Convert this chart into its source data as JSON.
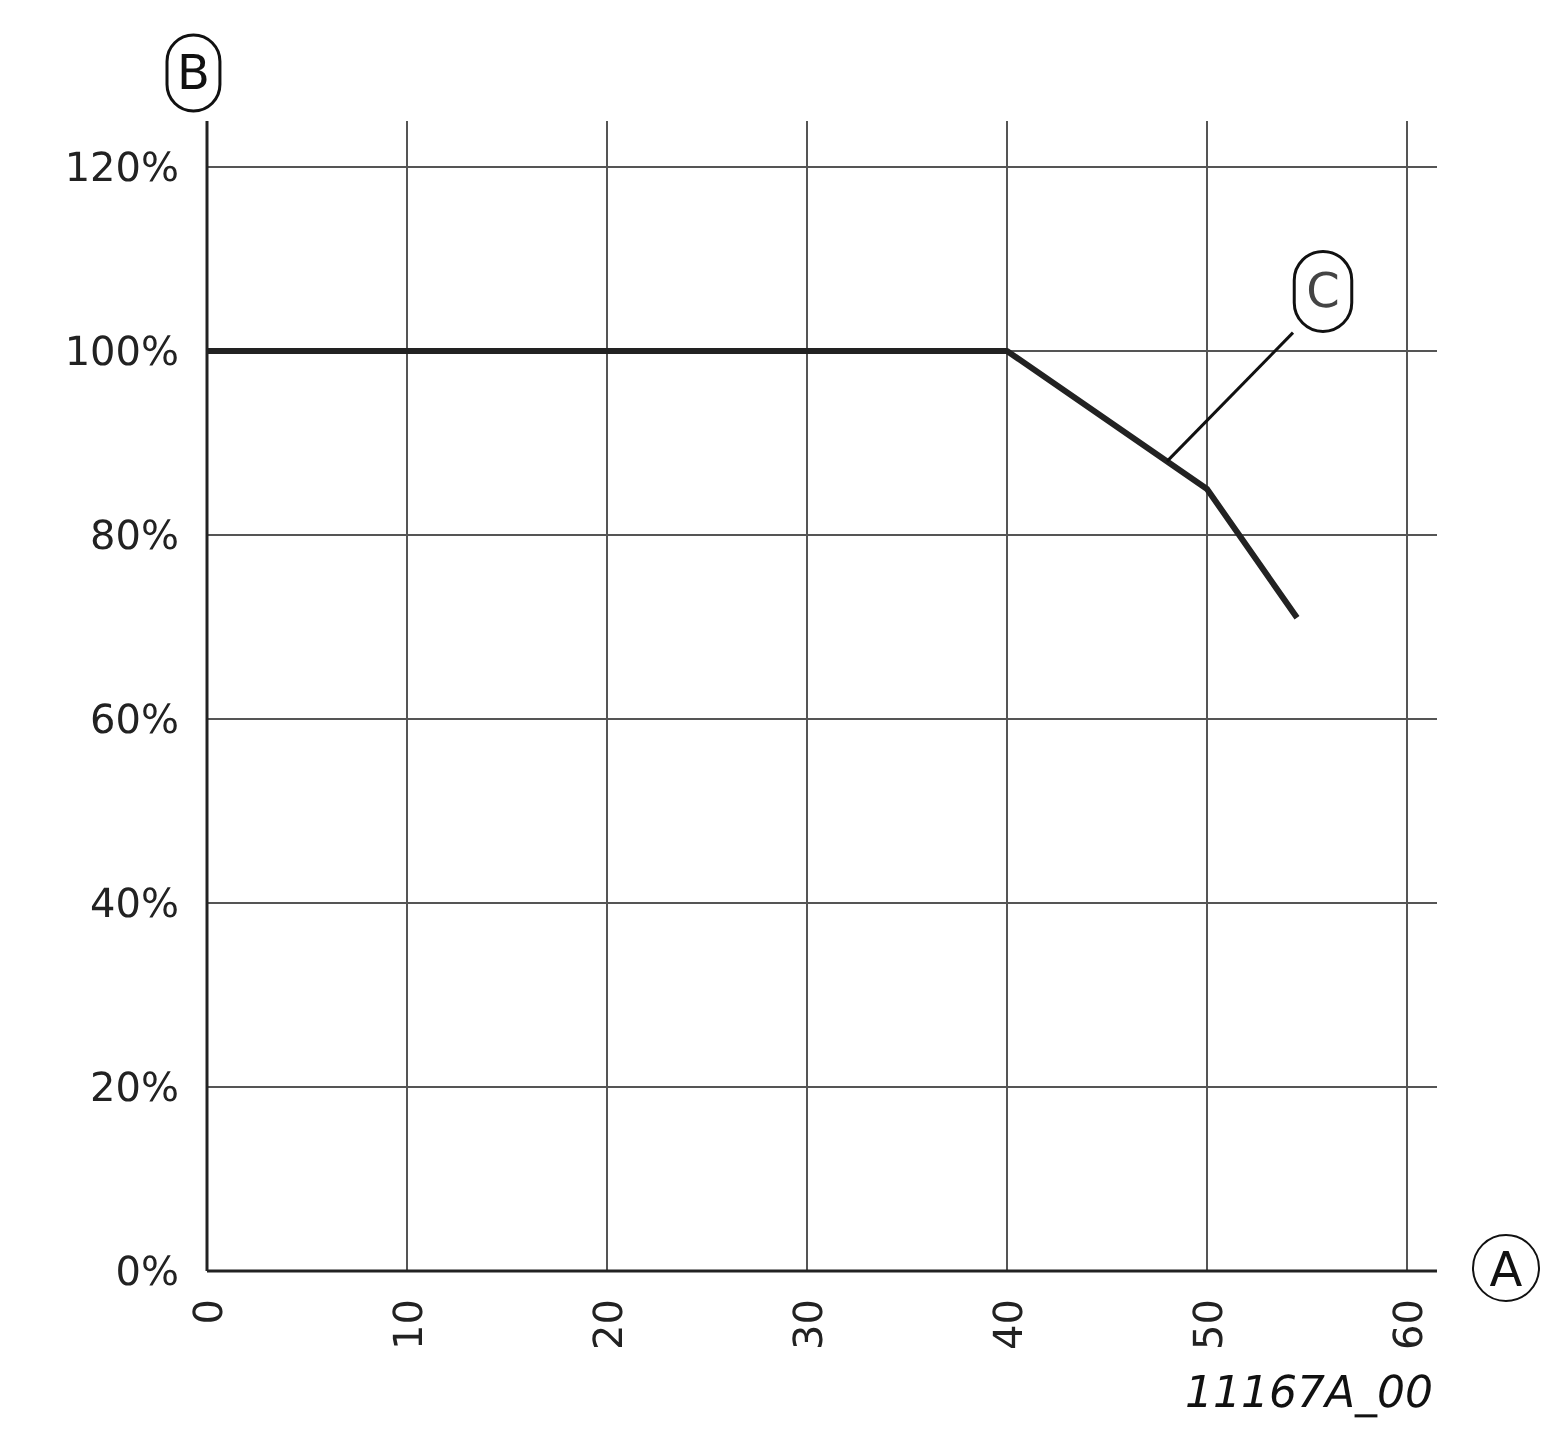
{
  "chart_data": {
    "type": "line",
    "xlabel": "A",
    "ylabel": "B",
    "x": [
      0,
      40,
      50,
      54.5
    ],
    "series": [
      {
        "color": "#222222",
        "values": [
          100,
          100,
          85,
          71
        ]
      }
    ],
    "xlim": [
      0,
      61.5
    ],
    "ylim": [
      0,
      125
    ],
    "xticks": [
      0,
      10,
      20,
      30,
      40,
      50,
      60
    ],
    "yticks": [
      {
        "value": 0,
        "label": "0%"
      },
      {
        "value": 20,
        "label": "20%"
      },
      {
        "value": 40,
        "label": "40%"
      },
      {
        "value": 60,
        "label": "60%"
      },
      {
        "value": 80,
        "label": "80%"
      },
      {
        "value": 100,
        "label": "100%"
      },
      {
        "value": 120,
        "label": "120%"
      }
    ],
    "grid": true,
    "line_style": "solid",
    "annotations": [
      {
        "text": "C",
        "x": 48,
        "y": 88
      },
      "11167A_00"
    ]
  }
}
